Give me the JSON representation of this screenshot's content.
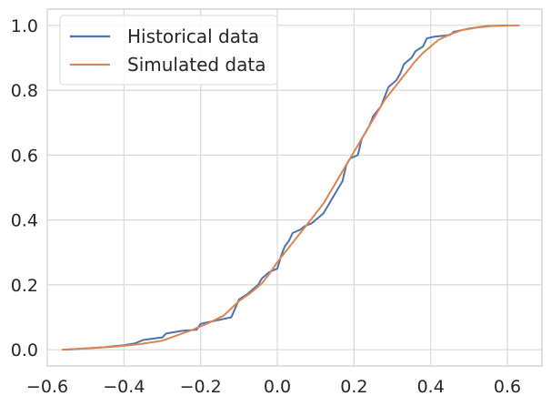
{
  "chart_data": {
    "type": "line",
    "title": "",
    "xlabel": "",
    "ylabel": "",
    "xlim": [
      -0.6,
      0.69
    ],
    "ylim": [
      -0.05,
      1.05
    ],
    "x_ticks": [
      -0.6,
      -0.4,
      -0.2,
      0.0,
      0.2,
      0.4,
      0.6
    ],
    "x_tick_labels": [
      "−0.6",
      "−0.4",
      "−0.2",
      "0.0",
      "0.2",
      "0.4",
      "0.6"
    ],
    "y_ticks": [
      0.0,
      0.2,
      0.4,
      0.6,
      0.8,
      1.0
    ],
    "y_tick_labels": [
      "0.0",
      "0.2",
      "0.4",
      "0.6",
      "0.8",
      "1.0"
    ],
    "grid": true,
    "legend": "upper-left",
    "series": [
      {
        "name": "Historical data",
        "color": "#4c72b0",
        "points": [
          [
            -0.55,
            0.0
          ],
          [
            -0.5,
            0.004
          ],
          [
            -0.45,
            0.008
          ],
          [
            -0.4,
            0.014
          ],
          [
            -0.37,
            0.02
          ],
          [
            -0.35,
            0.03
          ],
          [
            -0.3,
            0.038
          ],
          [
            -0.29,
            0.05
          ],
          [
            -0.25,
            0.058
          ],
          [
            -0.21,
            0.062
          ],
          [
            -0.2,
            0.08
          ],
          [
            -0.16,
            0.09
          ],
          [
            -0.12,
            0.1
          ],
          [
            -0.1,
            0.155
          ],
          [
            -0.08,
            0.17
          ],
          [
            -0.07,
            0.18
          ],
          [
            -0.05,
            0.2
          ],
          [
            -0.04,
            0.22
          ],
          [
            -0.02,
            0.24
          ],
          [
            0.0,
            0.25
          ],
          [
            0.01,
            0.29
          ],
          [
            0.02,
            0.32
          ],
          [
            0.03,
            0.335
          ],
          [
            0.04,
            0.36
          ],
          [
            0.06,
            0.37
          ],
          [
            0.07,
            0.38
          ],
          [
            0.09,
            0.39
          ],
          [
            0.1,
            0.4
          ],
          [
            0.12,
            0.42
          ],
          [
            0.13,
            0.44
          ],
          [
            0.14,
            0.46
          ],
          [
            0.15,
            0.48
          ],
          [
            0.16,
            0.5
          ],
          [
            0.17,
            0.52
          ],
          [
            0.18,
            0.57
          ],
          [
            0.19,
            0.59
          ],
          [
            0.21,
            0.6
          ],
          [
            0.22,
            0.65
          ],
          [
            0.24,
            0.69
          ],
          [
            0.25,
            0.72
          ],
          [
            0.27,
            0.75
          ],
          [
            0.28,
            0.78
          ],
          [
            0.29,
            0.81
          ],
          [
            0.31,
            0.83
          ],
          [
            0.32,
            0.85
          ],
          [
            0.33,
            0.88
          ],
          [
            0.35,
            0.9
          ],
          [
            0.36,
            0.92
          ],
          [
            0.38,
            0.935
          ],
          [
            0.39,
            0.96
          ],
          [
            0.41,
            0.965
          ],
          [
            0.45,
            0.97
          ],
          [
            0.46,
            0.98
          ],
          [
            0.5,
            0.99
          ],
          [
            0.55,
            0.998
          ],
          [
            0.6,
            1.0
          ]
        ]
      },
      {
        "name": "Simulated data",
        "color": "#dd8452",
        "points": [
          [
            -0.56,
            0.0
          ],
          [
            -0.5,
            0.004
          ],
          [
            -0.42,
            0.01
          ],
          [
            -0.36,
            0.017
          ],
          [
            -0.3,
            0.028
          ],
          [
            -0.26,
            0.045
          ],
          [
            -0.22,
            0.062
          ],
          [
            -0.18,
            0.082
          ],
          [
            -0.14,
            0.105
          ],
          [
            -0.1,
            0.15
          ],
          [
            -0.07,
            0.175
          ],
          [
            -0.04,
            0.205
          ],
          [
            -0.02,
            0.235
          ],
          [
            0.0,
            0.27
          ],
          [
            0.02,
            0.3
          ],
          [
            0.04,
            0.33
          ],
          [
            0.06,
            0.36
          ],
          [
            0.08,
            0.39
          ],
          [
            0.1,
            0.42
          ],
          [
            0.12,
            0.45
          ],
          [
            0.14,
            0.49
          ],
          [
            0.16,
            0.53
          ],
          [
            0.18,
            0.57
          ],
          [
            0.2,
            0.61
          ],
          [
            0.22,
            0.65
          ],
          [
            0.24,
            0.69
          ],
          [
            0.26,
            0.73
          ],
          [
            0.28,
            0.77
          ],
          [
            0.3,
            0.8
          ],
          [
            0.32,
            0.83
          ],
          [
            0.34,
            0.86
          ],
          [
            0.36,
            0.89
          ],
          [
            0.38,
            0.915
          ],
          [
            0.4,
            0.935
          ],
          [
            0.42,
            0.955
          ],
          [
            0.45,
            0.972
          ],
          [
            0.48,
            0.985
          ],
          [
            0.52,
            0.993
          ],
          [
            0.56,
            0.998
          ],
          [
            0.63,
            1.0
          ]
        ]
      }
    ]
  }
}
